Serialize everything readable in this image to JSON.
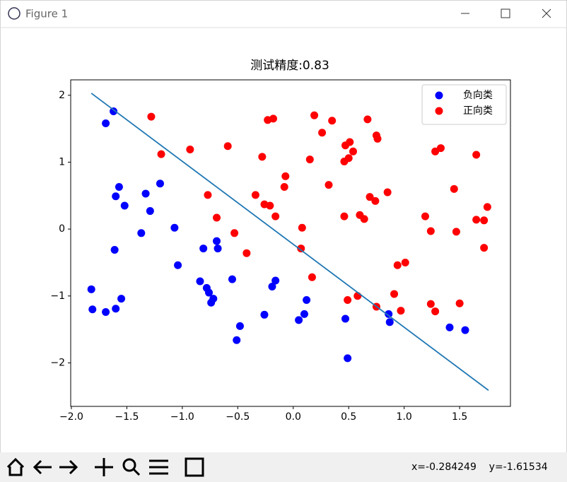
{
  "window": {
    "title": "Figure 1",
    "status": "x=-0.284249    y=-1.61534"
  },
  "chart_data": {
    "type": "scatter",
    "title": "测试精度:0.83",
    "xlim": [
      -2.006,
      1.958
    ],
    "ylim": [
      -2.65,
      2.23
    ],
    "xticks": [
      {
        "value": -2.0,
        "label": "−2.0"
      },
      {
        "value": -1.5,
        "label": "−1.5"
      },
      {
        "value": -1.0,
        "label": "−1.0"
      },
      {
        "value": -0.5,
        "label": "−0.5"
      },
      {
        "value": 0.0,
        "label": "0.0"
      },
      {
        "value": 0.5,
        "label": "0.5"
      },
      {
        "value": 1.0,
        "label": "1.0"
      },
      {
        "value": 1.5,
        "label": "1.5"
      }
    ],
    "yticks": [
      {
        "value": -2,
        "label": "−2"
      },
      {
        "value": -1,
        "label": "−1"
      },
      0,
      1,
      2
    ],
    "legend": "upper right",
    "series": [
      {
        "name": "负向类",
        "color": "#0000ff",
        "x": [
          -1.62,
          -1.69,
          -1.57,
          -1.6,
          -1.52,
          -1.2,
          -1.33,
          -1.29,
          -1.37,
          -1.07,
          -1.61,
          -1.04,
          -1.82,
          -1.81,
          -1.69,
          -1.6,
          -1.55,
          -0.81,
          -0.69,
          -0.68,
          -0.84,
          -0.78,
          -0.76,
          -0.72,
          -0.74,
          -0.55,
          -0.48,
          -0.51,
          -0.26,
          -0.16,
          -0.19,
          0.12,
          0.1,
          0.05,
          0.47,
          0.49,
          0.86,
          0.87,
          1.41,
          1.55
        ],
        "y": [
          1.76,
          1.58,
          0.63,
          0.49,
          0.35,
          0.68,
          0.53,
          0.27,
          -0.06,
          0.02,
          -0.31,
          -0.54,
          -0.9,
          -1.2,
          -1.24,
          -1.19,
          -1.04,
          -0.29,
          -0.18,
          -0.29,
          -0.78,
          -0.88,
          -0.95,
          -1.04,
          -1.1,
          -0.75,
          -1.45,
          -1.66,
          -1.28,
          -0.77,
          -0.86,
          -1.06,
          -1.27,
          -1.36,
          -1.34,
          -1.93,
          -1.27,
          -1.39,
          -1.47,
          -1.51
        ]
      },
      {
        "name": "正向类",
        "color": "#ff0000",
        "x": [
          -1.28,
          -1.19,
          -0.93,
          -0.59,
          -0.77,
          -0.69,
          -0.53,
          -0.42,
          -0.34,
          -0.28,
          -0.26,
          -0.21,
          -0.16,
          -0.23,
          -0.18,
          -0.07,
          -0.08,
          0.08,
          0.07,
          0.17,
          0.15,
          0.19,
          0.26,
          0.35,
          0.32,
          0.46,
          0.47,
          0.51,
          0.5,
          0.54,
          0.46,
          0.6,
          0.64,
          0.67,
          0.69,
          0.74,
          0.75,
          0.76,
          0.85,
          0.49,
          0.58,
          0.75,
          0.91,
          0.94,
          1.01,
          0.97,
          1.19,
          1.24,
          1.28,
          1.33,
          1.45,
          1.47,
          1.24,
          1.28,
          1.5,
          1.65,
          1.65,
          1.72,
          1.72,
          1.75
        ],
        "y": [
          1.68,
          1.12,
          1.19,
          1.24,
          0.51,
          0.17,
          -0.06,
          -0.36,
          0.51,
          1.08,
          0.37,
          0.35,
          0.19,
          1.63,
          1.65,
          0.79,
          0.63,
          0.02,
          -0.29,
          -0.72,
          1.04,
          1.7,
          1.44,
          1.62,
          0.66,
          1.01,
          1.25,
          1.3,
          1.06,
          1.16,
          0.19,
          0.21,
          0.15,
          1.64,
          0.48,
          0.42,
          1.4,
          1.35,
          0.55,
          -1.06,
          -1.0,
          -1.16,
          -0.97,
          -0.54,
          -0.5,
          -1.22,
          0.19,
          -0.03,
          1.16,
          1.21,
          0.6,
          -0.04,
          -1.12,
          -1.23,
          -1.11,
          1.11,
          0.14,
          0.13,
          -0.28,
          0.33
        ]
      },
      {
        "type": "line",
        "color": "#1f77b4",
        "x": [
          -1.82,
          1.76
        ],
        "y": [
          2.03,
          -2.41
        ]
      }
    ]
  }
}
